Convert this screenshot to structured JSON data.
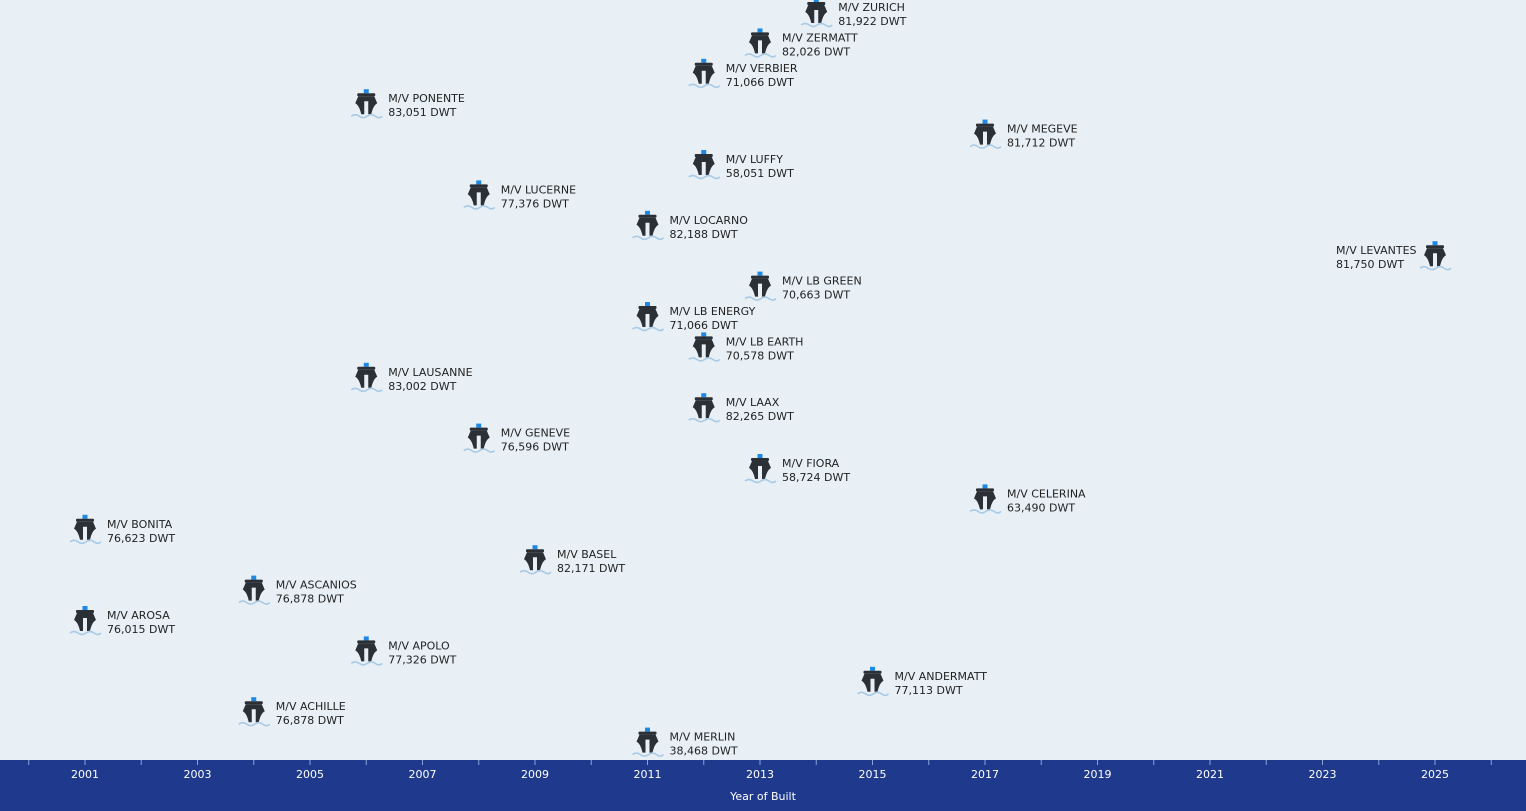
{
  "colors": {
    "background": "#e8f0f6",
    "axis_band": "#1f3a8c",
    "ship_body": "#2b2f36",
    "ship_accent": "#1e88e5",
    "water": "#a9cbe6"
  },
  "chart_data": {
    "type": "scatter",
    "marker": "ship-icon",
    "title": "",
    "xlabel": "Year of Built",
    "ylabel": "",
    "xlim": [
      1999.5,
      2026.5
    ],
    "x_ticks": [
      "2001",
      "2003",
      "2005",
      "2007",
      "2009",
      "2011",
      "2013",
      "2015",
      "2017",
      "2019",
      "2021",
      "2023",
      "2025"
    ],
    "grid": false,
    "y_axis": "vessel list (one row per vessel, top to bottom)",
    "points": [
      {
        "name": "M/V ZURICH",
        "dwt": "81,922 DWT",
        "year": 2014,
        "row": 0
      },
      {
        "name": "M/V ZERMATT",
        "dwt": "82,026 DWT",
        "year": 2013,
        "row": 1
      },
      {
        "name": "M/V VERBIER",
        "dwt": "71,066 DWT",
        "year": 2012,
        "row": 2
      },
      {
        "name": "M/V PONENTE",
        "dwt": "83,051 DWT",
        "year": 2006,
        "row": 3
      },
      {
        "name": "M/V MEGEVE",
        "dwt": "81,712 DWT",
        "year": 2017,
        "row": 4
      },
      {
        "name": "M/V LUFFY",
        "dwt": "58,051 DWT",
        "year": 2012,
        "row": 5
      },
      {
        "name": "M/V LUCERNE",
        "dwt": "77,376 DWT",
        "year": 2008,
        "row": 6
      },
      {
        "name": "M/V LOCARNO",
        "dwt": "82,188 DWT",
        "year": 2011,
        "row": 7
      },
      {
        "name": "M/V LEVANTES",
        "dwt": "81,750 DWT",
        "year": 2025,
        "row": 8,
        "label_side": "left"
      },
      {
        "name": "M/V LB GREEN",
        "dwt": "70,663 DWT",
        "year": 2013,
        "row": 9
      },
      {
        "name": "M/V LB ENERGY",
        "dwt": "71,066 DWT",
        "year": 2011,
        "row": 10
      },
      {
        "name": "M/V LB EARTH",
        "dwt": "70,578 DWT",
        "year": 2012,
        "row": 11
      },
      {
        "name": "M/V LAUSANNE",
        "dwt": "83,002 DWT",
        "year": 2006,
        "row": 12
      },
      {
        "name": "M/V LAAX",
        "dwt": "82,265 DWT",
        "year": 2012,
        "row": 13
      },
      {
        "name": "M/V GENEVE",
        "dwt": "76,596 DWT",
        "year": 2008,
        "row": 14
      },
      {
        "name": "M/V FIORA",
        "dwt": "58,724 DWT",
        "year": 2013,
        "row": 15
      },
      {
        "name": "M/V CELERINA",
        "dwt": "63,490 DWT",
        "year": 2017,
        "row": 16
      },
      {
        "name": "M/V BONITA",
        "dwt": "76,623 DWT",
        "year": 2001,
        "row": 17
      },
      {
        "name": "M/V BASEL",
        "dwt": "82,171 DWT",
        "year": 2009,
        "row": 18
      },
      {
        "name": "M/V ASCANIOS",
        "dwt": "76,878 DWT",
        "year": 2004,
        "row": 19
      },
      {
        "name": "M/V AROSA",
        "dwt": "76,015 DWT",
        "year": 2001,
        "row": 20
      },
      {
        "name": "M/V APOLO",
        "dwt": "77,326 DWT",
        "year": 2006,
        "row": 21
      },
      {
        "name": "M/V ANDERMATT",
        "dwt": "77,113 DWT",
        "year": 2015,
        "row": 22
      },
      {
        "name": "M/V ACHILLE",
        "dwt": "76,878 DWT",
        "year": 2004,
        "row": 23
      },
      {
        "name": "M/V  MERLIN",
        "dwt": "38,468 DWT",
        "year": 2011,
        "row": 24
      }
    ]
  }
}
